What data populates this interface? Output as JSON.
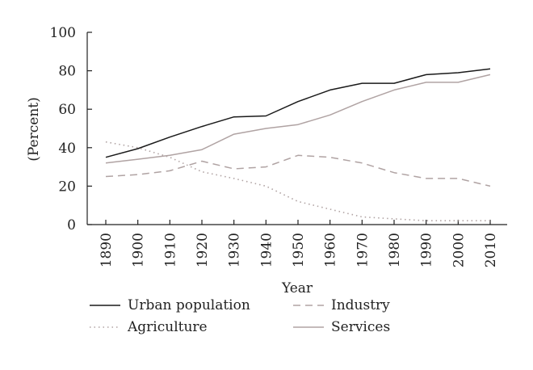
{
  "chart_data": {
    "type": "line",
    "xlabel": "Year",
    "ylabel": "(Percent)",
    "ylim": [
      0,
      100
    ],
    "yticks": [
      0,
      20,
      40,
      60,
      80,
      100
    ],
    "x": [
      1890,
      1900,
      1910,
      1920,
      1930,
      1940,
      1950,
      1960,
      1970,
      1980,
      1990,
      2000,
      2010
    ],
    "x_tick_labels": [
      "1890",
      "1900",
      "1910",
      "1920",
      "1930",
      "1940",
      "1950",
      "1960",
      "1970",
      "1980",
      "1990",
      "2000",
      "2010"
    ],
    "y_tick_labels": [
      "0",
      "20",
      "40",
      "60",
      "80",
      "100"
    ],
    "grid": false,
    "legend_position": "bottom",
    "series": [
      {
        "name": "Urban population",
        "color": "#1a1a1a",
        "style": "solid",
        "values": [
          35,
          39.5,
          45.5,
          51,
          56,
          56.5,
          64,
          70,
          73.5,
          73.5,
          78,
          79,
          81
        ]
      },
      {
        "name": "Industry",
        "color": "#b0a3a3",
        "style": "dashed",
        "values": [
          25,
          26,
          28,
          33,
          29,
          30,
          36,
          35,
          32,
          27,
          24,
          24,
          20
        ]
      },
      {
        "name": "Agriculture",
        "color": "#b0a3a3",
        "style": "dotted",
        "values": [
          43,
          40,
          35,
          27.5,
          24,
          20,
          12,
          8,
          4,
          3,
          2,
          2,
          2
        ]
      },
      {
        "name": "Services",
        "color": "#b0a3a3",
        "style": "solid",
        "values": [
          32,
          34,
          36,
          39,
          47,
          50,
          52,
          57,
          64,
          70,
          74,
          74,
          78
        ]
      }
    ]
  }
}
